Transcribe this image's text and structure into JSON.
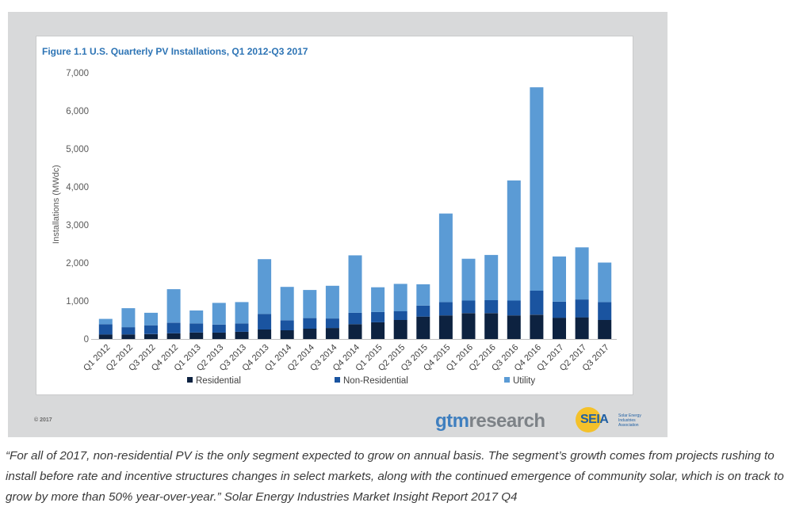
{
  "chart_data": {
    "type": "bar",
    "stacked": true,
    "title": "Figure 1.1 U.S. Quarterly PV Installations, Q1 2012-Q3 2017",
    "ylabel": "Installations (MWdc)",
    "xlabel": "",
    "ylim": [
      0,
      7000
    ],
    "yticks": [
      "7,000",
      "6,000",
      "5,000",
      "4,000",
      "3,000",
      "2,000",
      "1,000",
      "0"
    ],
    "grid": false,
    "legend": "bottom",
    "categories": [
      "Q1 2012",
      "Q2 2012",
      "Q3 2012",
      "Q4 2012",
      "Q1 2013",
      "Q2 2013",
      "Q3 2013",
      "Q4 2013",
      "Q1 2014",
      "Q2 2014",
      "Q3 2014",
      "Q4 2014",
      "Q1 2015",
      "Q2 2015",
      "Q3 2015",
      "Q4 2015",
      "Q1 2016",
      "Q2 2016",
      "Q3 2016",
      "Q4 2016",
      "Q1 2017",
      "Q2 2017",
      "Q3 2017"
    ],
    "series": [
      {
        "name": "Residential",
        "color": "#0d2240",
        "values": [
          120,
          120,
          130,
          150,
          170,
          170,
          190,
          250,
          230,
          270,
          290,
          390,
          440,
          500,
          590,
          620,
          680,
          680,
          620,
          640,
          560,
          570,
          500
        ]
      },
      {
        "name": "Non-Residential",
        "color": "#1a54a0",
        "values": [
          270,
          190,
          230,
          280,
          240,
          210,
          220,
          410,
          260,
          280,
          250,
          300,
          270,
          230,
          290,
          350,
          330,
          340,
          390,
          630,
          420,
          470,
          470
        ]
      },
      {
        "name": "Utility",
        "color": "#5b9bd5",
        "values": [
          140,
          500,
          330,
          880,
          340,
          570,
          560,
          1440,
          880,
          740,
          860,
          1510,
          650,
          720,
          560,
          2330,
          1100,
          1190,
          3160,
          5350,
          1190,
          1370,
          1040
        ]
      }
    ]
  },
  "footer": {
    "copyright": "© 2017",
    "gtm_brand": "gtm",
    "research_brand": "research",
    "seia_brand": "SEIA",
    "seia_tagline": "Solar Energy Industries Association"
  },
  "quote": "“For all of 2017, non-residential PV is the only segment expected to grow on annual basis. The segment’s growth comes from projects rushing to install before rate and incentive structures changes in select markets, along with the continued emergence of community solar, which is on track to grow by more than 50% year-over-year.” Solar Energy Industries Market Insight Report 2017 Q4"
}
